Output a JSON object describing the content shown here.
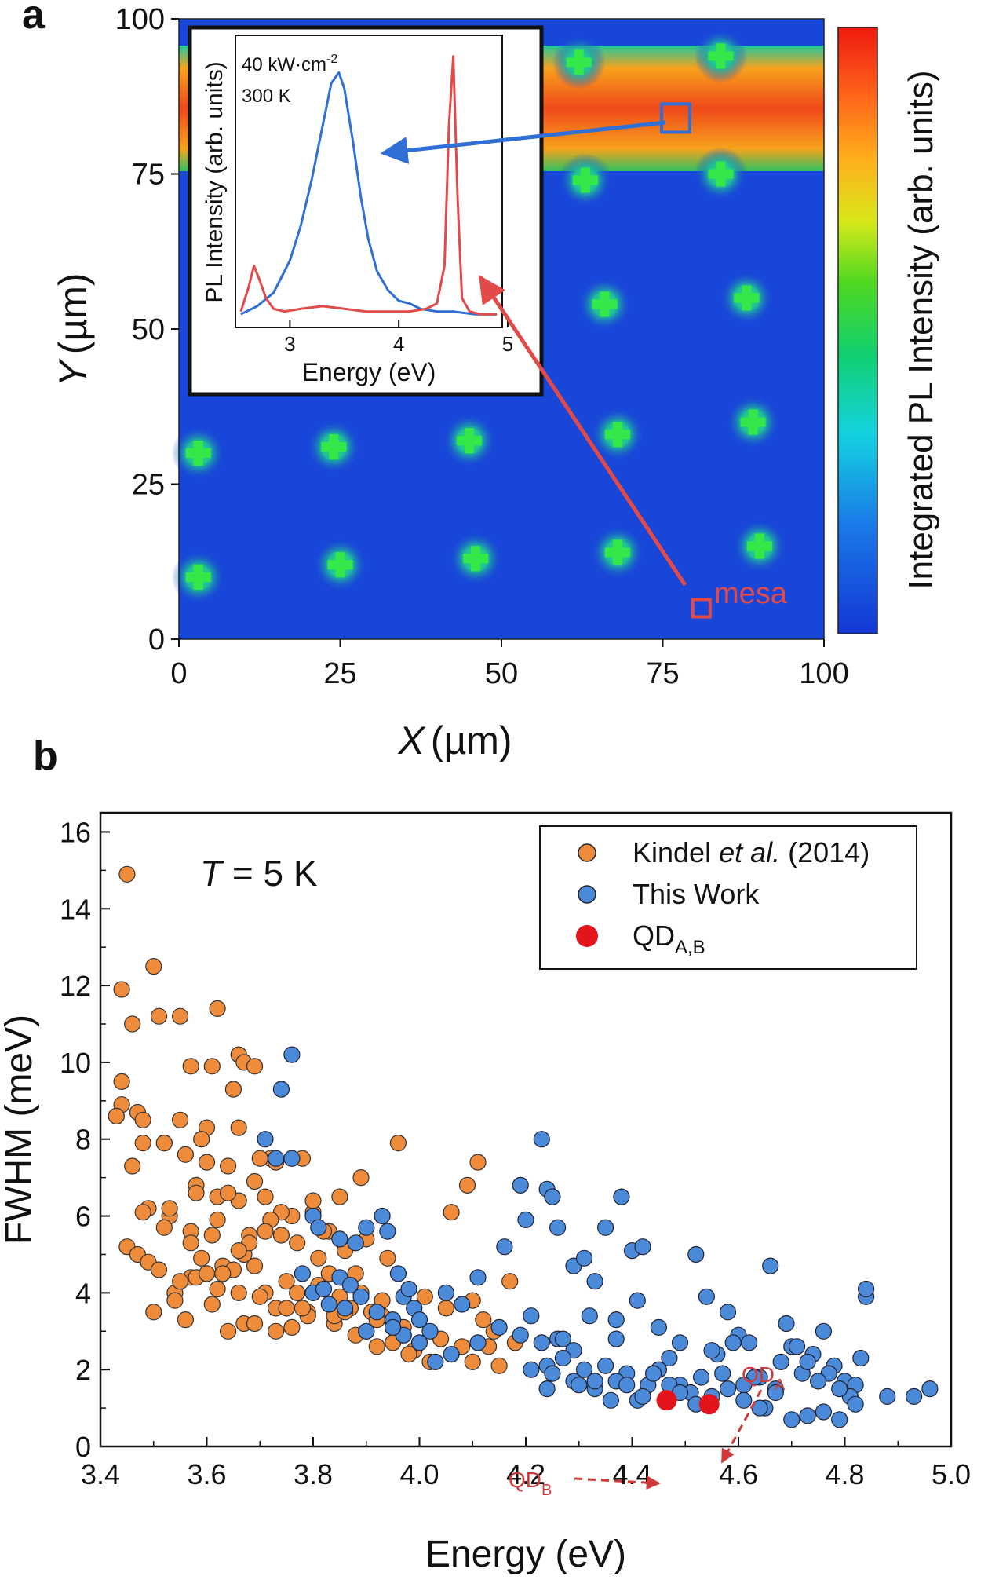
{
  "panels": {
    "a": {
      "letter": "a",
      "xlabel_var": "X",
      "xlabel_unit": "(µm)",
      "ylabel_var": "Y",
      "ylabel_unit": "(µm)",
      "colorbar_label": "Integrated PL Intensity (arb. units)",
      "mesa_label": "mesa",
      "inset": {
        "power": "40 kW·cm",
        "power_sup": "-2",
        "temperature": "300 K",
        "xlabel": "Energy (eV)",
        "ylabel": "PL Intensity (arb. units)"
      }
    },
    "b": {
      "letter": "b",
      "temp_var": "T",
      "temp_value": " = 5 K",
      "qd_a_base": "QD",
      "qd_a_sub": "A",
      "qd_b_base": "QD",
      "qd_b_sub": "B",
      "legend_qd_base": "QD",
      "legend_qd_sub": "A,B"
    }
  },
  "colors": {
    "kindel": "#ee8c3c",
    "this_work": "#4a8ad8",
    "qd": "#e4141c",
    "map_bg": "#1846d8",
    "inset_blue": "#2f6fd6",
    "inset_red": "#e24a4a",
    "annot_red": "#d13a3a"
  },
  "chart_data": [
    {
      "type": "heatmap",
      "panel": "a",
      "xlabel": "X (µm)",
      "ylabel": "Y (µm)",
      "xlim": [
        0,
        100
      ],
      "ylim": [
        0,
        100
      ],
      "xticks": [
        0,
        25,
        50,
        75,
        100
      ],
      "yticks": [
        0,
        25,
        50,
        75,
        100
      ],
      "colorbar_label": "Integrated PL Intensity (arb. units)",
      "bright_band_y": [
        77,
        93
      ],
      "emission_spots": [
        {
          "x": 3,
          "y": 10
        },
        {
          "x": 25,
          "y": 12
        },
        {
          "x": 46,
          "y": 13
        },
        {
          "x": 68,
          "y": 14
        },
        {
          "x": 90,
          "y": 15
        },
        {
          "x": 3,
          "y": 30
        },
        {
          "x": 24,
          "y": 31
        },
        {
          "x": 45,
          "y": 32
        },
        {
          "x": 68,
          "y": 33
        },
        {
          "x": 89,
          "y": 35
        },
        {
          "x": 66,
          "y": 54
        },
        {
          "x": 88,
          "y": 55
        },
        {
          "x": 63,
          "y": 74
        },
        {
          "x": 84,
          "y": 75
        },
        {
          "x": 62,
          "y": 93
        },
        {
          "x": 84,
          "y": 94
        }
      ],
      "marked_regions": [
        {
          "label": "mesa",
          "x": 81,
          "y": 5
        },
        {
          "label": "",
          "x": 77,
          "y": 84
        }
      ]
    },
    {
      "type": "line",
      "panel": "a-inset",
      "xlabel": "Energy (eV)",
      "ylabel": "PL Intensity (arb. units)",
      "xlim": [
        2.5,
        4.95
      ],
      "xticks": [
        3,
        4,
        5
      ],
      "annotations": [
        "40 kW·cm-2",
        "300 K"
      ],
      "series": [
        {
          "name": "",
          "color": "blue",
          "x": [
            2.55,
            2.7,
            2.85,
            3.0,
            3.1,
            3.2,
            3.3,
            3.38,
            3.45,
            3.5,
            3.58,
            3.65,
            3.72,
            3.8,
            3.9,
            4.0,
            4.1,
            4.2,
            4.35,
            4.5,
            4.7,
            4.9
          ],
          "y": [
            0.02,
            0.05,
            0.1,
            0.22,
            0.35,
            0.52,
            0.72,
            0.88,
            0.92,
            0.86,
            0.66,
            0.46,
            0.3,
            0.18,
            0.11,
            0.07,
            0.06,
            0.04,
            0.03,
            0.03,
            0.02,
            0.02
          ]
        },
        {
          "name": "",
          "color": "red",
          "x": [
            2.55,
            2.62,
            2.67,
            2.72,
            2.78,
            2.85,
            2.95,
            3.1,
            3.3,
            3.5,
            3.7,
            3.9,
            4.1,
            4.25,
            4.35,
            4.42,
            4.46,
            4.5,
            4.54,
            4.58,
            4.65,
            4.75,
            4.9
          ],
          "y": [
            0.03,
            0.12,
            0.2,
            0.15,
            0.08,
            0.04,
            0.03,
            0.04,
            0.05,
            0.04,
            0.03,
            0.03,
            0.03,
            0.04,
            0.06,
            0.2,
            0.72,
            0.98,
            0.45,
            0.08,
            0.03,
            0.02,
            0.02
          ]
        }
      ]
    },
    {
      "type": "scatter",
      "panel": "b",
      "xlabel": "Energy (eV)",
      "ylabel": "FWHM (meV)",
      "xlim": [
        3.4,
        5.0
      ],
      "ylim": [
        0,
        16.5
      ],
      "xticks": [
        3.4,
        3.6,
        3.8,
        4.0,
        4.2,
        4.4,
        4.6,
        4.8,
        5.0
      ],
      "yticks": [
        0,
        2,
        4,
        6,
        8,
        10,
        12,
        14,
        16
      ],
      "legend_position": "top-right",
      "series": [
        {
          "name": "Kindel et al. (2014)",
          "x": [
            3.45,
            3.44,
            3.46,
            3.44,
            3.5,
            3.51,
            3.55,
            3.62,
            3.57,
            3.61,
            3.66,
            3.67,
            3.69,
            3.65,
            3.44,
            3.43,
            3.43,
            3.47,
            3.48,
            3.52,
            3.55,
            3.6,
            3.66,
            3.72,
            3.59,
            3.46,
            3.48,
            3.52,
            3.56,
            3.6,
            3.64,
            3.7,
            3.73,
            3.78,
            3.49,
            3.53,
            3.58,
            3.62,
            3.66,
            3.71,
            3.76,
            3.8,
            3.83,
            3.45,
            3.47,
            3.49,
            3.51,
            3.54,
            3.57,
            3.59,
            3.61,
            3.63,
            3.65,
            3.67,
            3.69,
            3.71,
            3.73,
            3.75,
            3.77,
            3.79,
            3.81,
            3.83,
            3.85,
            3.87,
            3.89,
            3.91,
            3.93,
            3.95,
            3.97,
            3.99,
            3.96,
            3.89,
            3.85,
            3.8,
            3.74,
            3.69,
            3.64,
            3.58,
            3.53,
            3.48,
            3.52,
            3.57,
            3.62,
            3.68,
            3.72,
            3.77,
            3.82,
            3.86,
            3.9,
            3.94,
            4.01,
            4.06,
            4.09,
            4.11,
            4.1,
            4.12,
            4.14,
            4.17,
            4.18,
            4.13,
            4.08,
            4.04,
            3.98,
            3.92,
            3.88,
            3.84,
            3.79,
            3.75,
            3.7,
            3.66,
            3.62,
            3.58,
            3.54,
            3.5,
            3.56,
            3.61,
            3.67,
            3.73,
            3.78,
            3.84,
            3.9,
            3.95,
            3.63,
            3.68,
            3.71,
            3.66,
            3.6,
            3.55,
            3.86,
            3.92,
            3.97,
            4.02,
            3.74,
            3.81,
            3.88,
            3.93,
            4.1,
            4.15,
            4.05,
            3.57,
            3.64,
            3.69,
            3.76
          ],
          "y": [
            14.9,
            11.9,
            11.0,
            9.5,
            12.5,
            11.2,
            11.2,
            11.4,
            9.9,
            9.9,
            10.2,
            10.0,
            9.9,
            9.3,
            8.9,
            8.6,
            8.6,
            8.7,
            8.5,
            7.9,
            8.5,
            8.3,
            8.3,
            7.5,
            8.0,
            7.3,
            7.9,
            7.9,
            7.6,
            7.4,
            7.3,
            7.5,
            7.4,
            7.5,
            6.2,
            6.0,
            6.8,
            6.5,
            6.4,
            6.5,
            6.0,
            6.1,
            5.6,
            5.2,
            5.0,
            4.8,
            4.6,
            4.0,
            4.4,
            4.9,
            5.5,
            4.7,
            4.6,
            5.0,
            4.7,
            4.0,
            3.6,
            4.3,
            4.0,
            3.5,
            4.2,
            4.5,
            3.9,
            3.6,
            4.0,
            3.5,
            3.4,
            3.1,
            2.9,
            2.5,
            7.9,
            7.0,
            6.5,
            6.4,
            6.1,
            6.9,
            6.6,
            6.6,
            6.2,
            6.1,
            5.7,
            5.6,
            5.9,
            5.5,
            5.9,
            5.3,
            5.6,
            5.1,
            5.4,
            4.9,
            3.9,
            6.1,
            6.8,
            7.4,
            3.8,
            3.3,
            3.0,
            4.3,
            2.7,
            2.6,
            2.6,
            2.8,
            2.4,
            2.6,
            2.9,
            3.2,
            3.4,
            3.6,
            3.9,
            4.0,
            4.1,
            4.4,
            3.8,
            3.5,
            3.3,
            3.7,
            3.2,
            3.0,
            3.6,
            3.4,
            3.0,
            2.7,
            4.5,
            5.3,
            5.6,
            5.1,
            4.5,
            4.3,
            3.5,
            3.3,
            3.1,
            2.2,
            5.5,
            4.9,
            4.5,
            3.8,
            2.2,
            2.1,
            3.6,
            5.3,
            3.0,
            3.2,
            3.1
          ]
        },
        {
          "name": "This Work",
          "x": [
            3.76,
            3.74,
            3.71,
            3.73,
            3.76,
            3.8,
            3.81,
            3.85,
            3.88,
            3.9,
            3.93,
            3.94,
            3.96,
            3.97,
            3.98,
            3.99,
            4.0,
            4.02,
            3.92,
            3.85,
            3.8,
            3.83,
            3.87,
            3.89,
            3.95,
            3.97,
            4.05,
            4.08,
            4.11,
            4.16,
            4.19,
            4.2,
            4.23,
            4.24,
            4.25,
            4.26,
            4.24,
            4.29,
            4.31,
            4.33,
            4.35,
            4.37,
            4.38,
            4.4,
            4.42,
            4.45,
            4.41,
            4.37,
            4.32,
            4.29,
            4.26,
            4.23,
            4.21,
            4.19,
            4.15,
            4.11,
            4.06,
            4.03,
            4.0,
            4.47,
            4.49,
            4.52,
            4.54,
            4.56,
            4.58,
            4.6,
            4.62,
            4.64,
            4.66,
            4.68,
            4.7,
            4.72,
            4.74,
            4.76,
            4.78,
            4.8,
            4.82,
            4.84,
            4.84,
            4.83,
            4.81,
            4.79,
            4.77,
            4.75,
            4.73,
            4.71,
            4.69,
            4.67,
            4.65,
            4.63,
            4.61,
            4.59,
            4.57,
            4.55,
            4.53,
            4.51,
            4.49,
            4.47,
            4.45,
            4.43,
            4.41,
            4.39,
            4.37,
            4.35,
            4.33,
            4.31,
            4.29,
            4.27,
            4.25,
            4.88,
            4.93,
            4.96,
            4.82,
            4.79,
            4.76,
            4.73,
            4.7,
            4.67,
            4.64,
            4.61,
            4.58,
            4.55,
            4.52,
            4.49,
            4.44,
            4.42,
            4.39,
            4.36,
            4.33,
            4.3,
            4.27,
            4.24,
            4.21,
            3.78,
            3.82,
            3.86,
            3.9,
            3.95
          ],
          "y": [
            10.2,
            9.3,
            8.0,
            7.5,
            7.5,
            6.0,
            5.7,
            5.4,
            5.3,
            5.7,
            6.0,
            5.6,
            4.5,
            3.9,
            4.1,
            3.6,
            3.3,
            3.0,
            3.5,
            4.4,
            4.0,
            3.7,
            4.2,
            3.9,
            3.3,
            2.9,
            4.0,
            3.7,
            4.4,
            5.2,
            6.8,
            5.9,
            8.0,
            6.7,
            6.5,
            5.7,
            2.1,
            4.7,
            4.9,
            4.3,
            5.7,
            3.3,
            6.5,
            5.1,
            5.2,
            3.1,
            3.8,
            2.8,
            3.4,
            2.5,
            2.8,
            2.7,
            3.4,
            2.9,
            3.1,
            2.7,
            2.4,
            2.2,
            2.7,
            2.3,
            1.6,
            5.0,
            3.9,
            2.4,
            3.5,
            2.9,
            2.7,
            1.8,
            4.7,
            2.2,
            2.6,
            1.9,
            2.4,
            3.0,
            2.1,
            1.7,
            1.6,
            3.9,
            4.1,
            2.3,
            1.3,
            1.5,
            1.9,
            1.7,
            2.2,
            2.6,
            3.2,
            1.5,
            1.0,
            1.8,
            1.6,
            2.7,
            1.9,
            2.5,
            1.8,
            1.4,
            2.7,
            1.6,
            2.0,
            1.6,
            1.2,
            1.9,
            1.7,
            2.1,
            1.5,
            2.0,
            1.7,
            2.3,
            1.9,
            1.3,
            1.3,
            1.5,
            1.1,
            0.7,
            0.9,
            0.8,
            0.7,
            1.4,
            1.0,
            1.2,
            1.5,
            1.3,
            1.1,
            1.4,
            1.9,
            1.3,
            1.6,
            1.2,
            1.7,
            1.6,
            2.8,
            1.5,
            2.0,
            4.5,
            4.1,
            3.6,
            3.0,
            3.1
          ]
        },
        {
          "name": "QDA,B",
          "x": [
            4.465,
            4.545
          ],
          "y": [
            1.2,
            1.1
          ]
        }
      ],
      "annotations": [
        "T = 5 K",
        "QDA",
        "QDB"
      ]
    }
  ]
}
